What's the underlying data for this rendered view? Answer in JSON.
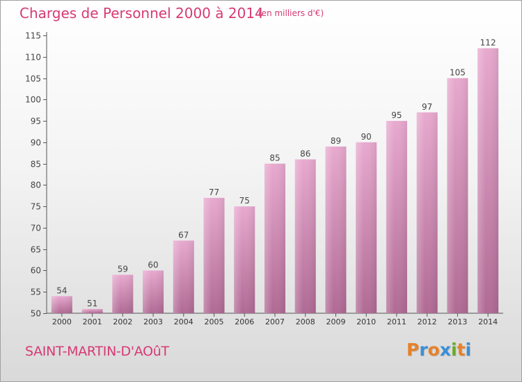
{
  "header": {
    "title": "Charges de Personnel 2000 à 2014",
    "subtitle": "(en milliers d'€)"
  },
  "footer": {
    "commune": "SAINT-MARTIN-D'AOûT",
    "logo_text": "Proxiti"
  },
  "colors": {
    "title": "#d63a73",
    "bar_top": "#e8a9cf",
    "bar_bottom": "#b06a94",
    "logo_letters": [
      "#e6812a",
      "#3a8fd6",
      "#e6812a",
      "#3a8fd6",
      "#6aaa2a",
      "#e6812a",
      "#3a8fd6"
    ]
  },
  "chart_data": {
    "type": "bar",
    "categories": [
      "2000",
      "2001",
      "2002",
      "2003",
      "2004",
      "2005",
      "2006",
      "2007",
      "2008",
      "2009",
      "2010",
      "2011",
      "2012",
      "2013",
      "2014"
    ],
    "values": [
      54,
      51,
      59,
      60,
      67,
      77,
      75,
      85,
      86,
      89,
      90,
      95,
      97,
      105,
      112
    ],
    "ylim": [
      50,
      115
    ],
    "yticks": [
      50,
      55,
      60,
      65,
      70,
      75,
      80,
      85,
      90,
      95,
      100,
      105,
      110,
      115
    ],
    "grid": false,
    "data_labels": true
  }
}
